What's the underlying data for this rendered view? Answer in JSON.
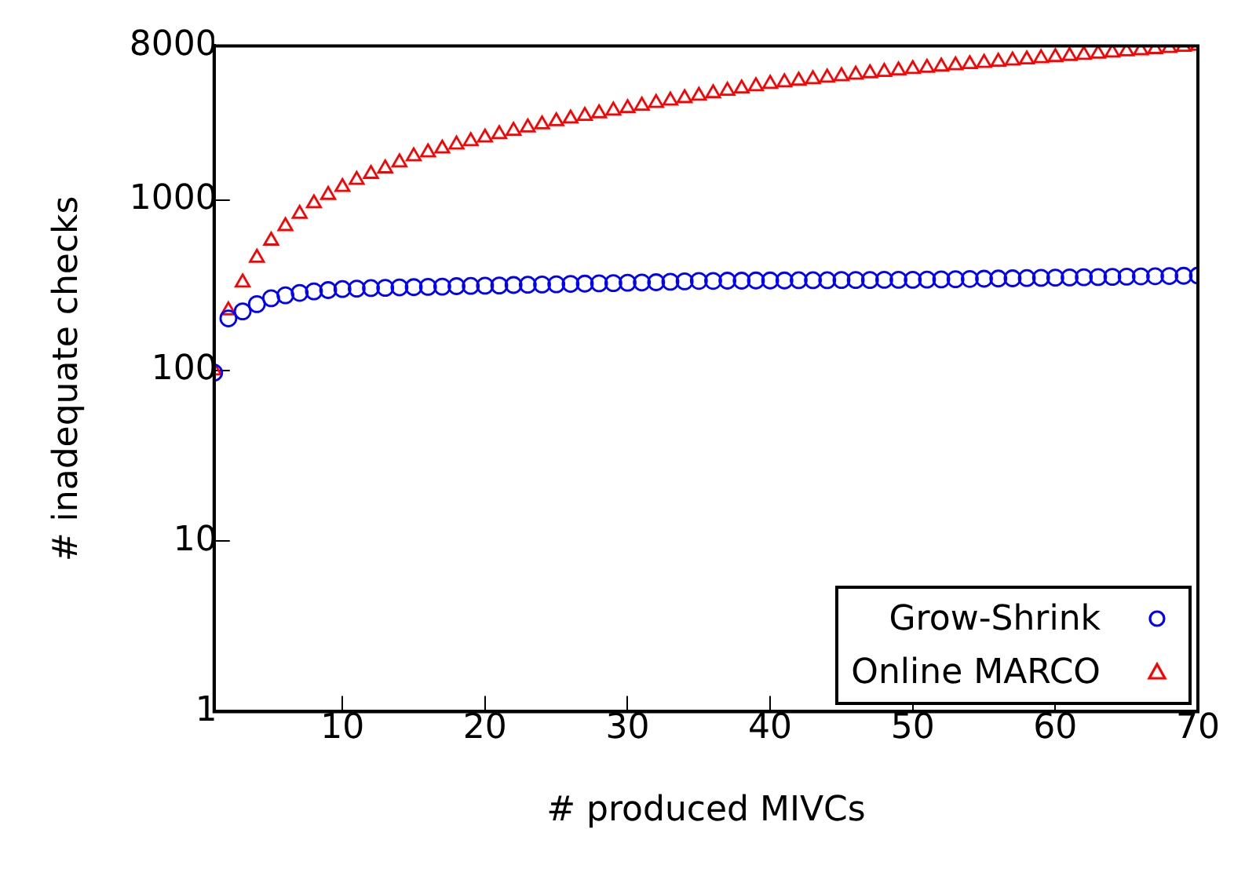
{
  "chart_data": {
    "type": "scatter",
    "xlabel": "# produced MIVCs",
    "ylabel": "# inadequate checks",
    "log": "y",
    "xlim": [
      1,
      70
    ],
    "xticks": [
      10,
      20,
      30,
      40,
      50,
      60,
      70
    ],
    "ylim": [
      1,
      8000
    ],
    "yticks": [
      1,
      10,
      100,
      1000,
      8000
    ],
    "grid": false,
    "legend": "bottom right",
    "x": [
      1,
      2,
      3,
      4,
      5,
      6,
      7,
      8,
      9,
      10,
      11,
      12,
      13,
      14,
      15,
      16,
      17,
      18,
      19,
      20,
      21,
      22,
      23,
      24,
      25,
      26,
      27,
      28,
      29,
      30,
      31,
      32,
      33,
      34,
      35,
      36,
      37,
      38,
      39,
      40,
      41,
      42,
      43,
      44,
      45,
      46,
      47,
      48,
      49,
      50,
      51,
      52,
      53,
      54,
      55,
      56,
      57,
      58,
      59,
      60,
      61,
      62,
      63,
      64,
      65,
      66,
      67,
      68,
      69,
      70
    ],
    "series": [
      {
        "name": "Grow-Shrink",
        "color": "#0000ff",
        "marker": "circle",
        "values": [
          97,
          202,
          222,
          245,
          265,
          276,
          285,
          291,
          296,
          300,
          302,
          304,
          305,
          307,
          308,
          309,
          310,
          312,
          313,
          314,
          315,
          317,
          318,
          319,
          320,
          322,
          323,
          324,
          325,
          327,
          328,
          329,
          331,
          333,
          335,
          335,
          336,
          336,
          337,
          337,
          337,
          338,
          338,
          338,
          339,
          339,
          339,
          340,
          340,
          340,
          341,
          342,
          343,
          344,
          345,
          346,
          347,
          348,
          349,
          350,
          351,
          352,
          353,
          354,
          355,
          356,
          357,
          358,
          359,
          360
        ]
      },
      {
        "name": "Online MARCO",
        "color": "#ff0000",
        "marker": "triangle",
        "values": [
          100,
          225,
          328,
          458,
          577,
          702,
          828,
          955,
          1070,
          1190,
          1310,
          1420,
          1530,
          1660,
          1800,
          1900,
          2000,
          2110,
          2210,
          2320,
          2430,
          2540,
          2660,
          2770,
          2890,
          3000,
          3110,
          3220,
          3340,
          3450,
          3570,
          3700,
          3820,
          3950,
          4080,
          4220,
          4360,
          4500,
          4640,
          4790,
          4890,
          5000,
          5100,
          5210,
          5310,
          5420,
          5530,
          5630,
          5740,
          5850,
          5950,
          6050,
          6150,
          6250,
          6360,
          6460,
          6560,
          6660,
          6770,
          6870,
          6980,
          7090,
          7200,
          7320,
          7430,
          7540,
          7660,
          7770,
          7890,
          8000
        ]
      }
    ]
  }
}
